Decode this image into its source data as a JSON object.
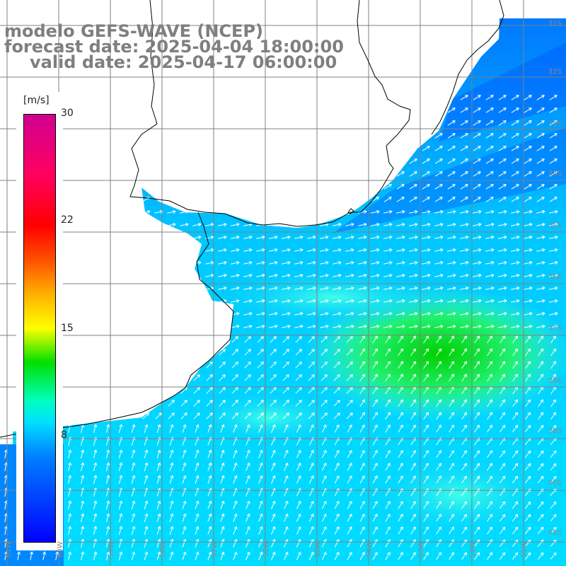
{
  "title": {
    "model": "modelo GEFS-WAVE (NCEP)",
    "forecast": "forecast date: 2025-04-04 18:00:00",
    "valid": "valid date: 2025-04-17 06:00:00"
  },
  "colorbar": {
    "unit": "[m/s]",
    "ticks": [
      "30",
      "22",
      "15",
      "8"
    ],
    "tick_values": [
      30,
      22,
      15,
      8
    ],
    "min": 0,
    "max": 30,
    "colors": {
      "low": "#0000ff",
      "mid_low": "#00e0ff",
      "mid": "#00e000",
      "mid_high": "#ffff00",
      "high": "#ff0000",
      "top": "#d00090"
    }
  },
  "map": {
    "lat_labels": [
      "31S",
      "32S",
      "33S",
      "34S",
      "35S",
      "36S",
      "37S",
      "38S",
      "39S",
      "40S",
      "41S"
    ],
    "lon_labels": [
      "61W",
      "60W",
      "59W",
      "58W",
      "57W",
      "56W",
      "55W",
      "54W",
      "53W",
      "52W",
      "51W"
    ],
    "wind_speed_field": "wind speed with direction arrows",
    "gridline_color": "#808080",
    "coastline_color": "#000000"
  }
}
